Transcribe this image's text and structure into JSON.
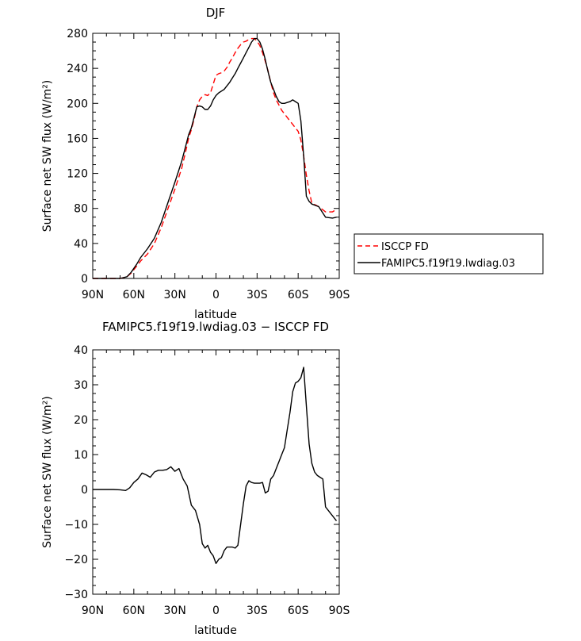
{
  "chart_data": [
    {
      "type": "line",
      "title": "DJF",
      "xlabel": "latitude",
      "ylabel": "Surface net SW flux (W/m²)",
      "xlim": [
        90,
        -90
      ],
      "ylim": [
        0,
        280
      ],
      "xticks": [
        90,
        60,
        30,
        0,
        -30,
        -60,
        -90
      ],
      "xtick_labels": [
        "90N",
        "60N",
        "30N",
        "0",
        "30S",
        "60S",
        "90S"
      ],
      "yticks": [
        0,
        40,
        80,
        120,
        160,
        200,
        240,
        280
      ],
      "ytick_labels": [
        "0",
        "40",
        "80",
        "120",
        "160",
        "200",
        "240",
        "280"
      ],
      "legend_position": "right",
      "series": [
        {
          "name": "ISCCP FD",
          "color": "#ff0000",
          "dash": "dashed",
          "x": [
            90,
            80,
            75,
            70,
            65,
            62,
            58,
            55,
            50,
            45,
            40,
            35,
            30,
            25,
            22,
            20,
            18,
            16,
            14,
            12,
            10,
            8,
            6,
            4,
            2,
            0,
            -2,
            -4,
            -6,
            -8,
            -10,
            -12,
            -14,
            -16,
            -18,
            -20,
            -22,
            -24,
            -26,
            -28,
            -30,
            -32,
            -34,
            -36,
            -38,
            -40,
            -42,
            -44,
            -46,
            -48,
            -50,
            -52,
            -54,
            -56,
            -58,
            -60,
            -62,
            -64,
            -66,
            -68,
            -70,
            -75,
            -80,
            -85,
            -88
          ],
          "y": [
            0,
            0,
            0,
            0,
            2,
            6,
            14,
            20,
            28,
            40,
            58,
            80,
            102,
            126,
            146,
            160,
            170,
            182,
            196,
            204,
            208,
            210,
            209,
            212,
            222,
            232,
            234,
            235,
            237,
            241,
            247,
            252,
            258,
            263,
            267,
            270,
            271,
            273,
            274,
            274,
            271,
            266,
            258,
            248,
            237,
            224,
            212,
            204,
            198,
            192,
            188,
            184,
            180,
            176,
            172,
            168,
            158,
            140,
            118,
            100,
            86,
            82,
            76,
            76,
            79
          ]
        },
        {
          "name": "FAMIPC5.f19f19.lwdiag.03",
          "color": "#000000",
          "dash": "solid",
          "x": [
            90,
            80,
            75,
            70,
            65,
            62,
            58,
            55,
            50,
            45,
            40,
            35,
            30,
            25,
            22,
            20,
            18,
            16,
            14,
            12,
            10,
            8,
            6,
            4,
            2,
            0,
            -2,
            -4,
            -6,
            -8,
            -10,
            -12,
            -14,
            -16,
            -18,
            -20,
            -22,
            -24,
            -26,
            -28,
            -30,
            -32,
            -34,
            -36,
            -38,
            -40,
            -42,
            -44,
            -46,
            -48,
            -50,
            -52,
            -54,
            -56,
            -58,
            -60,
            -62,
            -64,
            -66,
            -68,
            -70,
            -75,
            -80,
            -85,
            -88
          ],
          "y": [
            0,
            0,
            0,
            0,
            2,
            7,
            16,
            24,
            34,
            46,
            64,
            87,
            110,
            134,
            152,
            164,
            172,
            184,
            196,
            197,
            196,
            193,
            193,
            197,
            204,
            209,
            212,
            214,
            216,
            220,
            224,
            229,
            234,
            240,
            246,
            252,
            258,
            264,
            270,
            274,
            274,
            270,
            262,
            250,
            236,
            224,
            216,
            208,
            202,
            200,
            200,
            201,
            202,
            204,
            202,
            200,
            180,
            140,
            94,
            88,
            85,
            82,
            70,
            69,
            70
          ]
        }
      ]
    },
    {
      "type": "line",
      "title": "FAMIPC5.f19f19.lwdiag.03 − ISCCP FD",
      "xlabel": "latitude",
      "ylabel": "Surface net SW flux (W/m²)",
      "xlim": [
        90,
        -90
      ],
      "ylim": [
        -30,
        40
      ],
      "xticks": [
        90,
        60,
        30,
        0,
        -30,
        -60,
        -90
      ],
      "xtick_labels": [
        "90N",
        "60N",
        "30N",
        "0",
        "30S",
        "60S",
        "90S"
      ],
      "yticks": [
        -30,
        -20,
        -10,
        0,
        10,
        20,
        30,
        40
      ],
      "ytick_labels": [
        "−30",
        "−20",
        "−10",
        "0",
        "10",
        "20",
        "30",
        "40"
      ],
      "series": [
        {
          "color": "#000000",
          "dash": "solid",
          "x": [
            90,
            80,
            75,
            70,
            66,
            63,
            60,
            57,
            54,
            51,
            48,
            45,
            42,
            39,
            36,
            33,
            30,
            27,
            24,
            21,
            18,
            15,
            12,
            10,
            8,
            6,
            4,
            2,
            0,
            -2,
            -4,
            -6,
            -8,
            -10,
            -12,
            -14,
            -16,
            -18,
            -20,
            -22,
            -24,
            -26,
            -28,
            -30,
            -32,
            -34,
            -36,
            -38,
            -40,
            -42,
            -44,
            -46,
            -48,
            -50,
            -52,
            -54,
            -56,
            -58,
            -60,
            -62,
            -64,
            -66,
            -68,
            -70,
            -72,
            -74,
            -76,
            -78,
            -80,
            -82,
            -84,
            -86,
            -88
          ],
          "y": [
            0,
            0,
            0,
            -0.1,
            -0.3,
            0.5,
            2,
            3,
            4.7,
            4.2,
            3.5,
            5,
            5.5,
            5.5,
            5.7,
            6.5,
            5.2,
            6,
            3,
            1,
            -4.5,
            -6,
            -10,
            -15.5,
            -16.8,
            -16,
            -18,
            -19,
            -21.2,
            -20,
            -19.5,
            -17.5,
            -16.5,
            -16.5,
            -16.5,
            -16.8,
            -16,
            -10,
            -4,
            1,
            2.5,
            2,
            1.8,
            1.8,
            1.8,
            2,
            -1,
            -0.5,
            3,
            4,
            6,
            8,
            10,
            12,
            17,
            22,
            28,
            30.5,
            31,
            32,
            35,
            24,
            13,
            7.5,
            5,
            4,
            3.5,
            3,
            -5,
            -6,
            -7,
            -8,
            -9
          ]
        }
      ]
    }
  ]
}
